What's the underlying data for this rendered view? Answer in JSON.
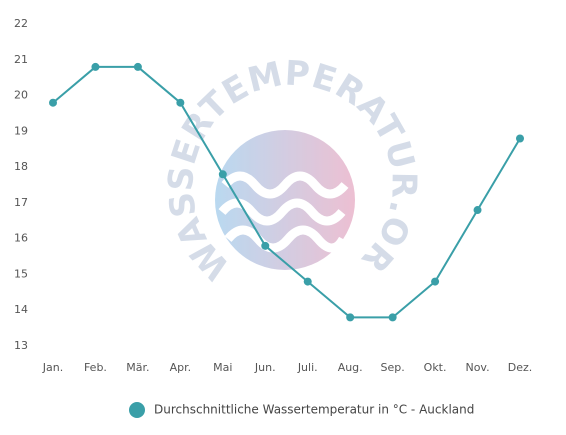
{
  "chart_data": {
    "type": "line",
    "watermark": "WASSERTEMPERATUR.ORG",
    "categories": [
      "Jan.",
      "Feb.",
      "Mär.",
      "Apr.",
      "Mai",
      "Jun.",
      "Juli.",
      "Aug.",
      "Sep.",
      "Okt.",
      "Nov.",
      "Dez."
    ],
    "series": [
      {
        "name": "Durchschnittliche Wassertemperatur in °C - Auckland",
        "color": "#3a9fa8",
        "values": [
          19.8,
          20.8,
          20.8,
          19.8,
          17.8,
          15.8,
          14.8,
          13.8,
          13.8,
          14.8,
          16.8,
          18.8
        ]
      }
    ],
    "ylim": [
      13,
      22
    ],
    "yticks": [
      13,
      14,
      15,
      16,
      17,
      18,
      19,
      20,
      21,
      22
    ],
    "grid": false
  }
}
